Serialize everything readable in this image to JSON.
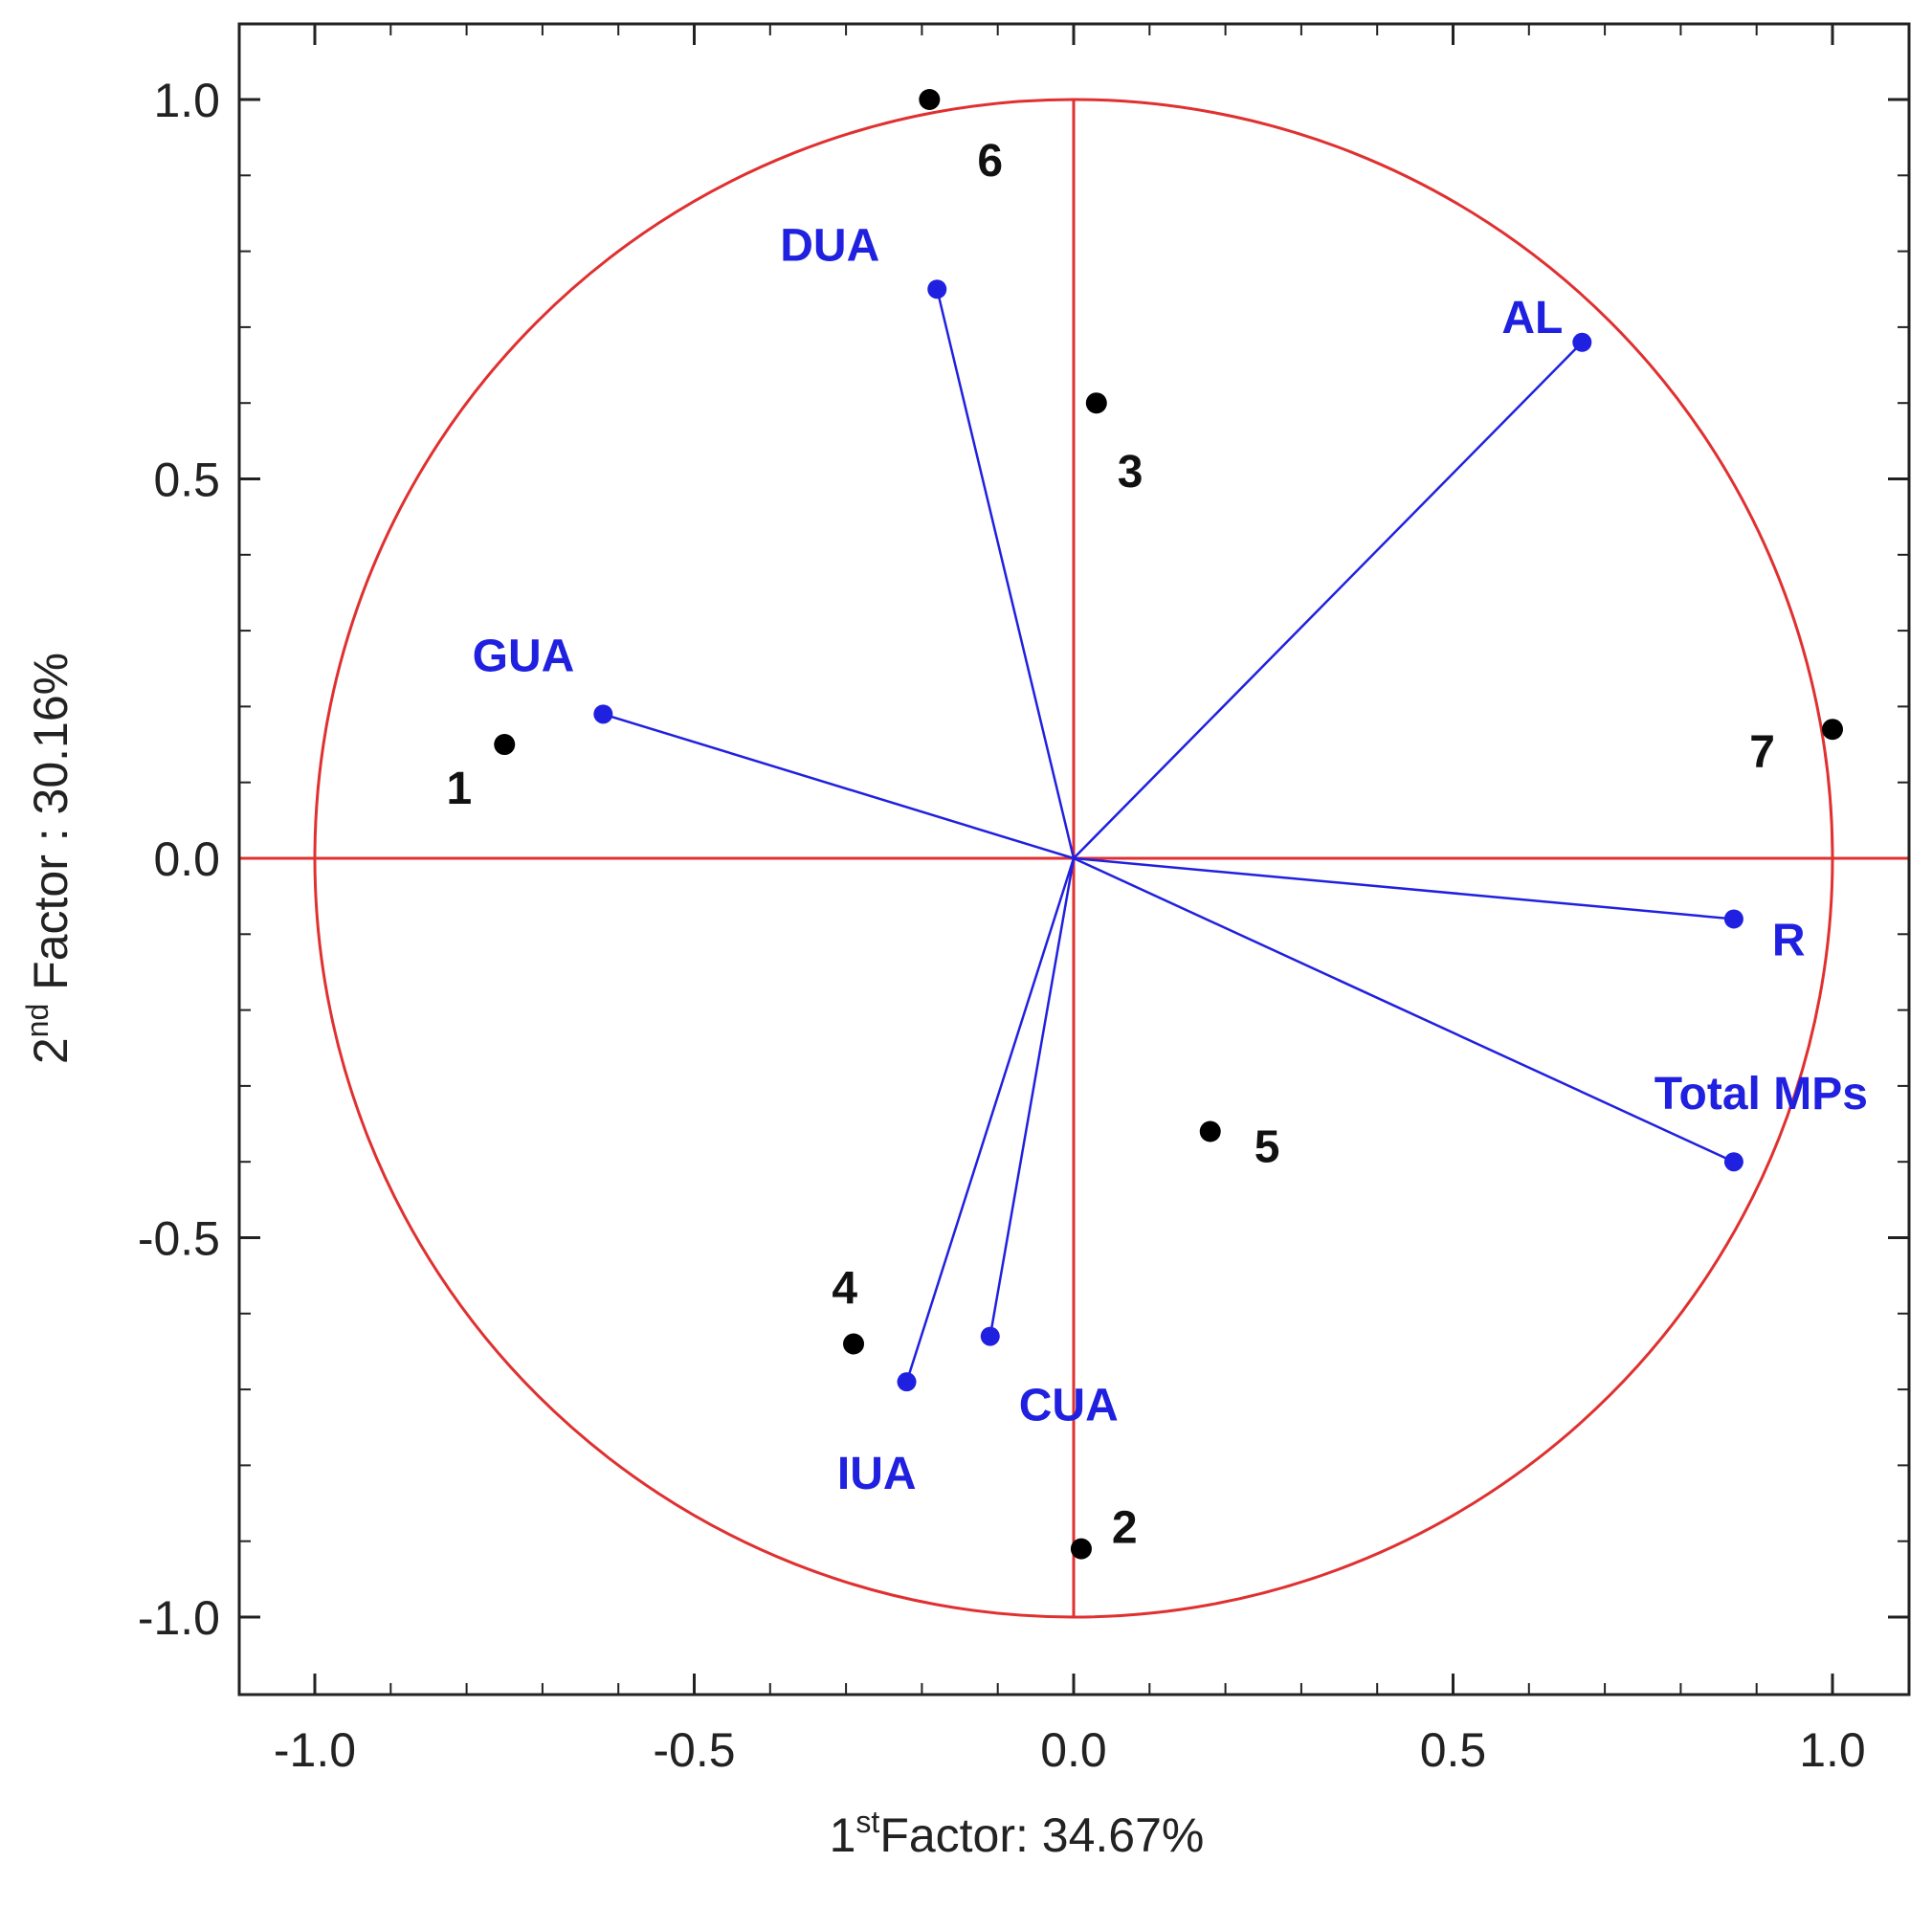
{
  "chart_data": {
    "type": "scatter",
    "subtype": "pca-correlation-circle",
    "xlabel": {
      "prefix": "1",
      "sup": "st",
      "text": "Factor: 34.67%"
    },
    "ylabel": {
      "prefix": "2",
      "sup": "nd",
      "text": " Factor : 30.16%"
    },
    "xlim": [
      -1.1,
      1.1
    ],
    "ylim": [
      -1.1,
      1.1
    ],
    "x_ticks": [
      {
        "value": -1.0,
        "label": "-1.0"
      },
      {
        "value": -0.5,
        "label": "-0.5"
      },
      {
        "value": 0.0,
        "label": "0.0"
      },
      {
        "value": 0.5,
        "label": "0.5"
      },
      {
        "value": 1.0,
        "label": "1.0"
      }
    ],
    "y_ticks": [
      {
        "value": 1.0,
        "label": "1.0"
      },
      {
        "value": 0.5,
        "label": "0.5"
      },
      {
        "value": 0.0,
        "label": "0.0"
      },
      {
        "value": -0.5,
        "label": "-0.5"
      },
      {
        "value": -1.0,
        "label": "-1.0"
      }
    ],
    "minor_tick_step": 0.1,
    "unit_circle": {
      "radius": 1.0,
      "color": "#e03030"
    },
    "variables": {
      "color": "#2020e0",
      "points": [
        {
          "name": "DUA",
          "x": -0.18,
          "y": 0.75
        },
        {
          "name": "AL",
          "x": 0.67,
          "y": 0.68
        },
        {
          "name": "GUA",
          "x": -0.62,
          "y": 0.19
        },
        {
          "name": "R",
          "x": 0.87,
          "y": -0.08
        },
        {
          "name": "Total MPs",
          "x": 0.87,
          "y": -0.4
        },
        {
          "name": "CUA",
          "x": -0.11,
          "y": -0.63
        },
        {
          "name": "IUA",
          "x": -0.22,
          "y": -0.69
        }
      ]
    },
    "cases": {
      "color": "#000000",
      "points": [
        {
          "name": "1",
          "x": -0.75,
          "y": 0.15
        },
        {
          "name": "2",
          "x": 0.01,
          "y": -0.91
        },
        {
          "name": "3",
          "x": 0.03,
          "y": 0.6
        },
        {
          "name": "4",
          "x": -0.29,
          "y": -0.64
        },
        {
          "name": "5",
          "x": 0.18,
          "y": -0.36
        },
        {
          "name": "6",
          "x": -0.19,
          "y": 1.0
        },
        {
          "name": "7",
          "x": 1.0,
          "y": 0.17
        }
      ]
    }
  }
}
